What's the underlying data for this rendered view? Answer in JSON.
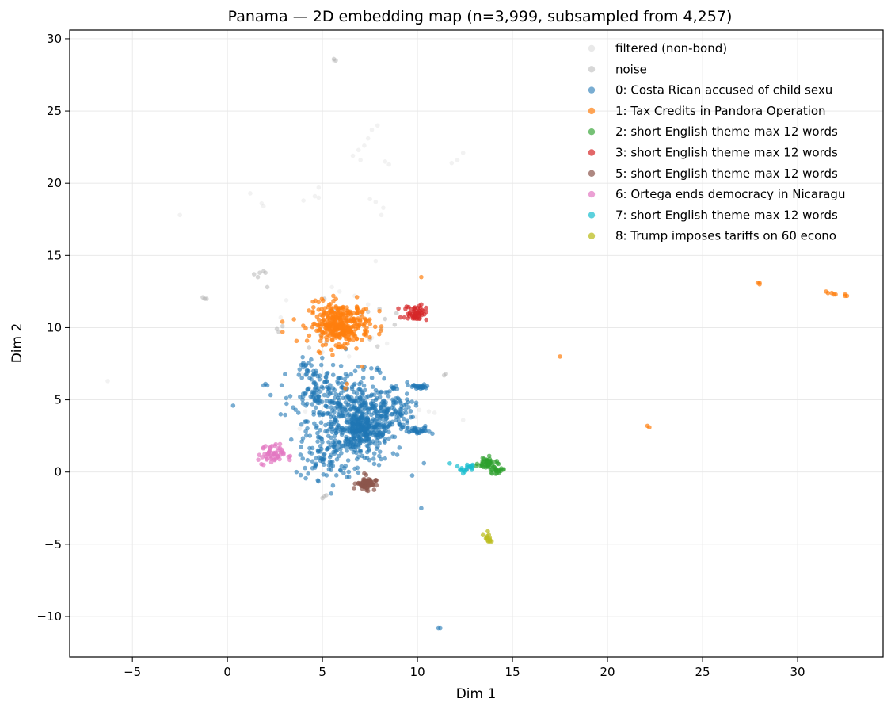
{
  "chart_data": {
    "type": "scatter",
    "title": "Panama — 2D embedding map (n=3,999, subsampled from 4,257)",
    "xlabel": "Dim 1",
    "ylabel": "Dim 2",
    "xlim": [
      -8.3,
      34.5
    ],
    "ylim": [
      -12.8,
      30.6
    ],
    "xticks": [
      -5,
      0,
      5,
      10,
      15,
      20,
      25,
      30
    ],
    "yticks": [
      -10,
      -5,
      0,
      5,
      10,
      15,
      20,
      25,
      30
    ],
    "grid": true,
    "legend_position": "top-right",
    "series": [
      {
        "name": "filtered (non-bond)",
        "color": "#d4d4d4",
        "opacity": 0.3,
        "points": [
          [
            5.6,
            28.5
          ],
          [
            7.9,
            24.0
          ],
          [
            7.6,
            23.7
          ],
          [
            7.4,
            23.1
          ],
          [
            7.2,
            22.6
          ],
          [
            6.9,
            22.3
          ],
          [
            6.6,
            21.9
          ],
          [
            7.0,
            21.6
          ],
          [
            8.3,
            21.5
          ],
          [
            8.5,
            21.3
          ],
          [
            12.4,
            22.1
          ],
          [
            12.1,
            21.6
          ],
          [
            11.8,
            21.4
          ],
          [
            4.8,
            19.7
          ],
          [
            4.6,
            19.1
          ],
          [
            4.8,
            19.0
          ],
          [
            4.0,
            18.8
          ],
          [
            7.5,
            18.9
          ],
          [
            7.8,
            18.7
          ],
          [
            8.2,
            18.3
          ],
          [
            8.1,
            17.8
          ],
          [
            1.2,
            19.3
          ],
          [
            1.8,
            18.6
          ],
          [
            1.9,
            18.4
          ],
          [
            -2.5,
            17.8
          ],
          [
            7.8,
            14.6
          ],
          [
            5.5,
            12.8
          ],
          [
            5.9,
            12.5
          ],
          [
            6.7,
            12.2
          ],
          [
            7.4,
            11.6
          ],
          [
            3.1,
            11.9
          ],
          [
            2.8,
            10.7
          ],
          [
            -6.3,
            6.3
          ],
          [
            9.6,
            4.1
          ],
          [
            9.9,
            3.8
          ],
          [
            10.1,
            4.3
          ],
          [
            10.6,
            4.2
          ],
          [
            10.9,
            4.1
          ],
          [
            12.4,
            3.6
          ],
          [
            8.4,
            3.8
          ],
          [
            3.9,
            6.8
          ],
          [
            4.1,
            4.2
          ],
          [
            3.8,
            3.0
          ],
          [
            7.6,
            9.3
          ],
          [
            8.4,
            8.9
          ],
          [
            6.4,
            8.0
          ],
          [
            5.0,
            8.3
          ]
        ]
      },
      {
        "name": "noise",
        "color": "#b0b0b0",
        "opacity": 0.5,
        "points": [
          [
            5.6,
            28.6
          ],
          [
            5.7,
            28.5
          ],
          [
            1.4,
            13.7
          ],
          [
            1.7,
            13.8
          ],
          [
            1.9,
            13.9
          ],
          [
            2.0,
            13.8
          ],
          [
            1.6,
            13.5
          ],
          [
            2.1,
            12.8
          ],
          [
            -1.3,
            12.1
          ],
          [
            -1.2,
            12.0
          ],
          [
            -1.1,
            12.0
          ],
          [
            2.6,
            9.9
          ],
          [
            2.7,
            9.7
          ],
          [
            2.9,
            10.1
          ],
          [
            7.0,
            10.9
          ],
          [
            7.4,
            11.1
          ],
          [
            8.0,
            11.3
          ],
          [
            8.3,
            10.6
          ],
          [
            8.8,
            10.2
          ],
          [
            8.1,
            9.9
          ],
          [
            7.5,
            9.2
          ],
          [
            7.9,
            8.7
          ],
          [
            6.5,
            9.7
          ],
          [
            5.1,
            12.0
          ],
          [
            5.6,
            11.2
          ],
          [
            4.9,
            9.5
          ],
          [
            5.2,
            9.0
          ],
          [
            11.5,
            6.8
          ],
          [
            11.4,
            6.7
          ],
          [
            5.0,
            -1.8
          ],
          [
            5.1,
            -1.7
          ],
          [
            5.2,
            -1.6
          ],
          [
            4.3,
            8.6
          ],
          [
            8.9,
            11.0
          ]
        ]
      },
      {
        "name": "0: Costa Rican accused of child sexu",
        "color": "#1f77b4",
        "opacity": 0.6,
        "clusters": [
          {
            "cx": 6.8,
            "cy": 3.6,
            "sx": 1.3,
            "sy": 1.5,
            "n": 520
          },
          {
            "cx": 7.1,
            "cy": 2.9,
            "sx": 0.5,
            "sy": 0.5,
            "n": 160
          },
          {
            "cx": 4.6,
            "cy": 5.8,
            "sx": 0.6,
            "sy": 0.9,
            "n": 90
          },
          {
            "cx": 8.6,
            "cy": 4.2,
            "sx": 0.6,
            "sy": 0.6,
            "n": 70
          },
          {
            "cx": 10.1,
            "cy": 5.9,
            "sx": 0.3,
            "sy": 0.08,
            "n": 28
          },
          {
            "cx": 10.1,
            "cy": 2.8,
            "sx": 0.3,
            "sy": 0.15,
            "n": 30
          },
          {
            "cx": 5.2,
            "cy": 0.9,
            "sx": 0.7,
            "sy": 0.7,
            "n": 60
          },
          {
            "cx": 4.1,
            "cy": 7.3,
            "sx": 0.2,
            "sy": 0.3,
            "n": 14
          }
        ],
        "points": [
          [
            1.9,
            6.0
          ],
          [
            2.0,
            6.1
          ],
          [
            2.1,
            6.0
          ],
          [
            0.3,
            4.6
          ],
          [
            2.8,
            4.0
          ],
          [
            10.2,
            -2.5
          ],
          [
            11.2,
            -10.8
          ],
          [
            11.1,
            -10.8
          ],
          [
            12.6,
            0.2
          ],
          [
            7.9,
            7.2
          ],
          [
            6.9,
            7.3
          ]
        ]
      },
      {
        "name": "1: Tax Credits in Pandora Operation",
        "color": "#ff7f0e",
        "opacity": 0.7,
        "clusters": [
          {
            "cx": 5.9,
            "cy": 10.3,
            "sx": 0.8,
            "sy": 0.7,
            "n": 300
          },
          {
            "cx": 6.0,
            "cy": 9.7,
            "sx": 0.4,
            "sy": 0.4,
            "n": 60
          }
        ],
        "points": [
          [
            10.2,
            13.5
          ],
          [
            27.9,
            13.1
          ],
          [
            28.0,
            13.0
          ],
          [
            28.0,
            13.1
          ],
          [
            31.5,
            12.5
          ],
          [
            31.6,
            12.4
          ],
          [
            31.8,
            12.4
          ],
          [
            32.0,
            12.3
          ],
          [
            31.9,
            12.3
          ],
          [
            32.5,
            12.3
          ],
          [
            32.6,
            12.2
          ],
          [
            32.5,
            12.2
          ],
          [
            17.5,
            8.0
          ],
          [
            22.2,
            3.1
          ],
          [
            22.1,
            3.2
          ],
          [
            2.9,
            9.7
          ],
          [
            7.1,
            7.3
          ],
          [
            6.3,
            6.1
          ],
          [
            7.3,
            11.3
          ],
          [
            4.5,
            11.8
          ],
          [
            6.2,
            5.8
          ]
        ]
      },
      {
        "name": "2: short English theme max 12 words",
        "color": "#2ca02c",
        "opacity": 0.65,
        "clusters": [
          {
            "cx": 13.7,
            "cy": 0.6,
            "sx": 0.25,
            "sy": 0.2,
            "n": 40
          },
          {
            "cx": 14.1,
            "cy": 0.1,
            "sx": 0.2,
            "sy": 0.1,
            "n": 20
          }
        ],
        "points": [
          [
            13.4,
            0.5
          ],
          [
            14.3,
            0.1
          ],
          [
            13.8,
            0.9
          ]
        ]
      },
      {
        "name": "3: short English theme max 12 words",
        "color": "#d62728",
        "opacity": 0.7,
        "clusters": [
          {
            "cx": 9.9,
            "cy": 11.0,
            "sx": 0.3,
            "sy": 0.25,
            "n": 50
          }
        ],
        "points": [
          [
            10.2,
            11.6
          ],
          [
            9.3,
            10.7
          ],
          [
            10.1,
            11.5
          ]
        ]
      },
      {
        "name": "5: short English theme max 12 words",
        "color": "#8c564b",
        "opacity": 0.7,
        "clusters": [
          {
            "cx": 7.3,
            "cy": -0.8,
            "sx": 0.25,
            "sy": 0.2,
            "n": 60
          }
        ],
        "points": [
          [
            7.3,
            -0.2
          ],
          [
            7.4,
            -1.3
          ],
          [
            7.2,
            -0.1
          ]
        ]
      },
      {
        "name": "6: Ortega ends democracy in Nicaragu",
        "color": "#e377c2",
        "opacity": 0.7,
        "clusters": [
          {
            "cx": 2.3,
            "cy": 1.2,
            "sx": 0.35,
            "sy": 0.35,
            "n": 50
          }
        ],
        "points": [
          [
            1.9,
            0.5
          ],
          [
            1.9,
            1.7
          ],
          [
            2.9,
            1.4
          ],
          [
            2.0,
            1.8
          ]
        ]
      },
      {
        "name": "7: short English theme max 12 words",
        "color": "#17becf",
        "opacity": 0.7,
        "clusters": [
          {
            "cx": 12.6,
            "cy": 0.2,
            "sx": 0.15,
            "sy": 0.15,
            "n": 14
          }
        ],
        "points": [
          [
            11.7,
            0.6
          ],
          [
            12.1,
            0.4
          ],
          [
            12.4,
            -0.1
          ],
          [
            12.9,
            0.4
          ]
        ]
      },
      {
        "name": "8: Trump imposes tariffs on 60 econo",
        "color": "#bcbd22",
        "opacity": 0.75,
        "clusters": [
          {
            "cx": 13.7,
            "cy": -4.6,
            "sx": 0.1,
            "sy": 0.15,
            "n": 12
          }
        ],
        "points": [
          [
            13.7,
            -4.1
          ],
          [
            13.8,
            -4.8
          ],
          [
            13.9,
            -4.8
          ]
        ]
      }
    ]
  }
}
